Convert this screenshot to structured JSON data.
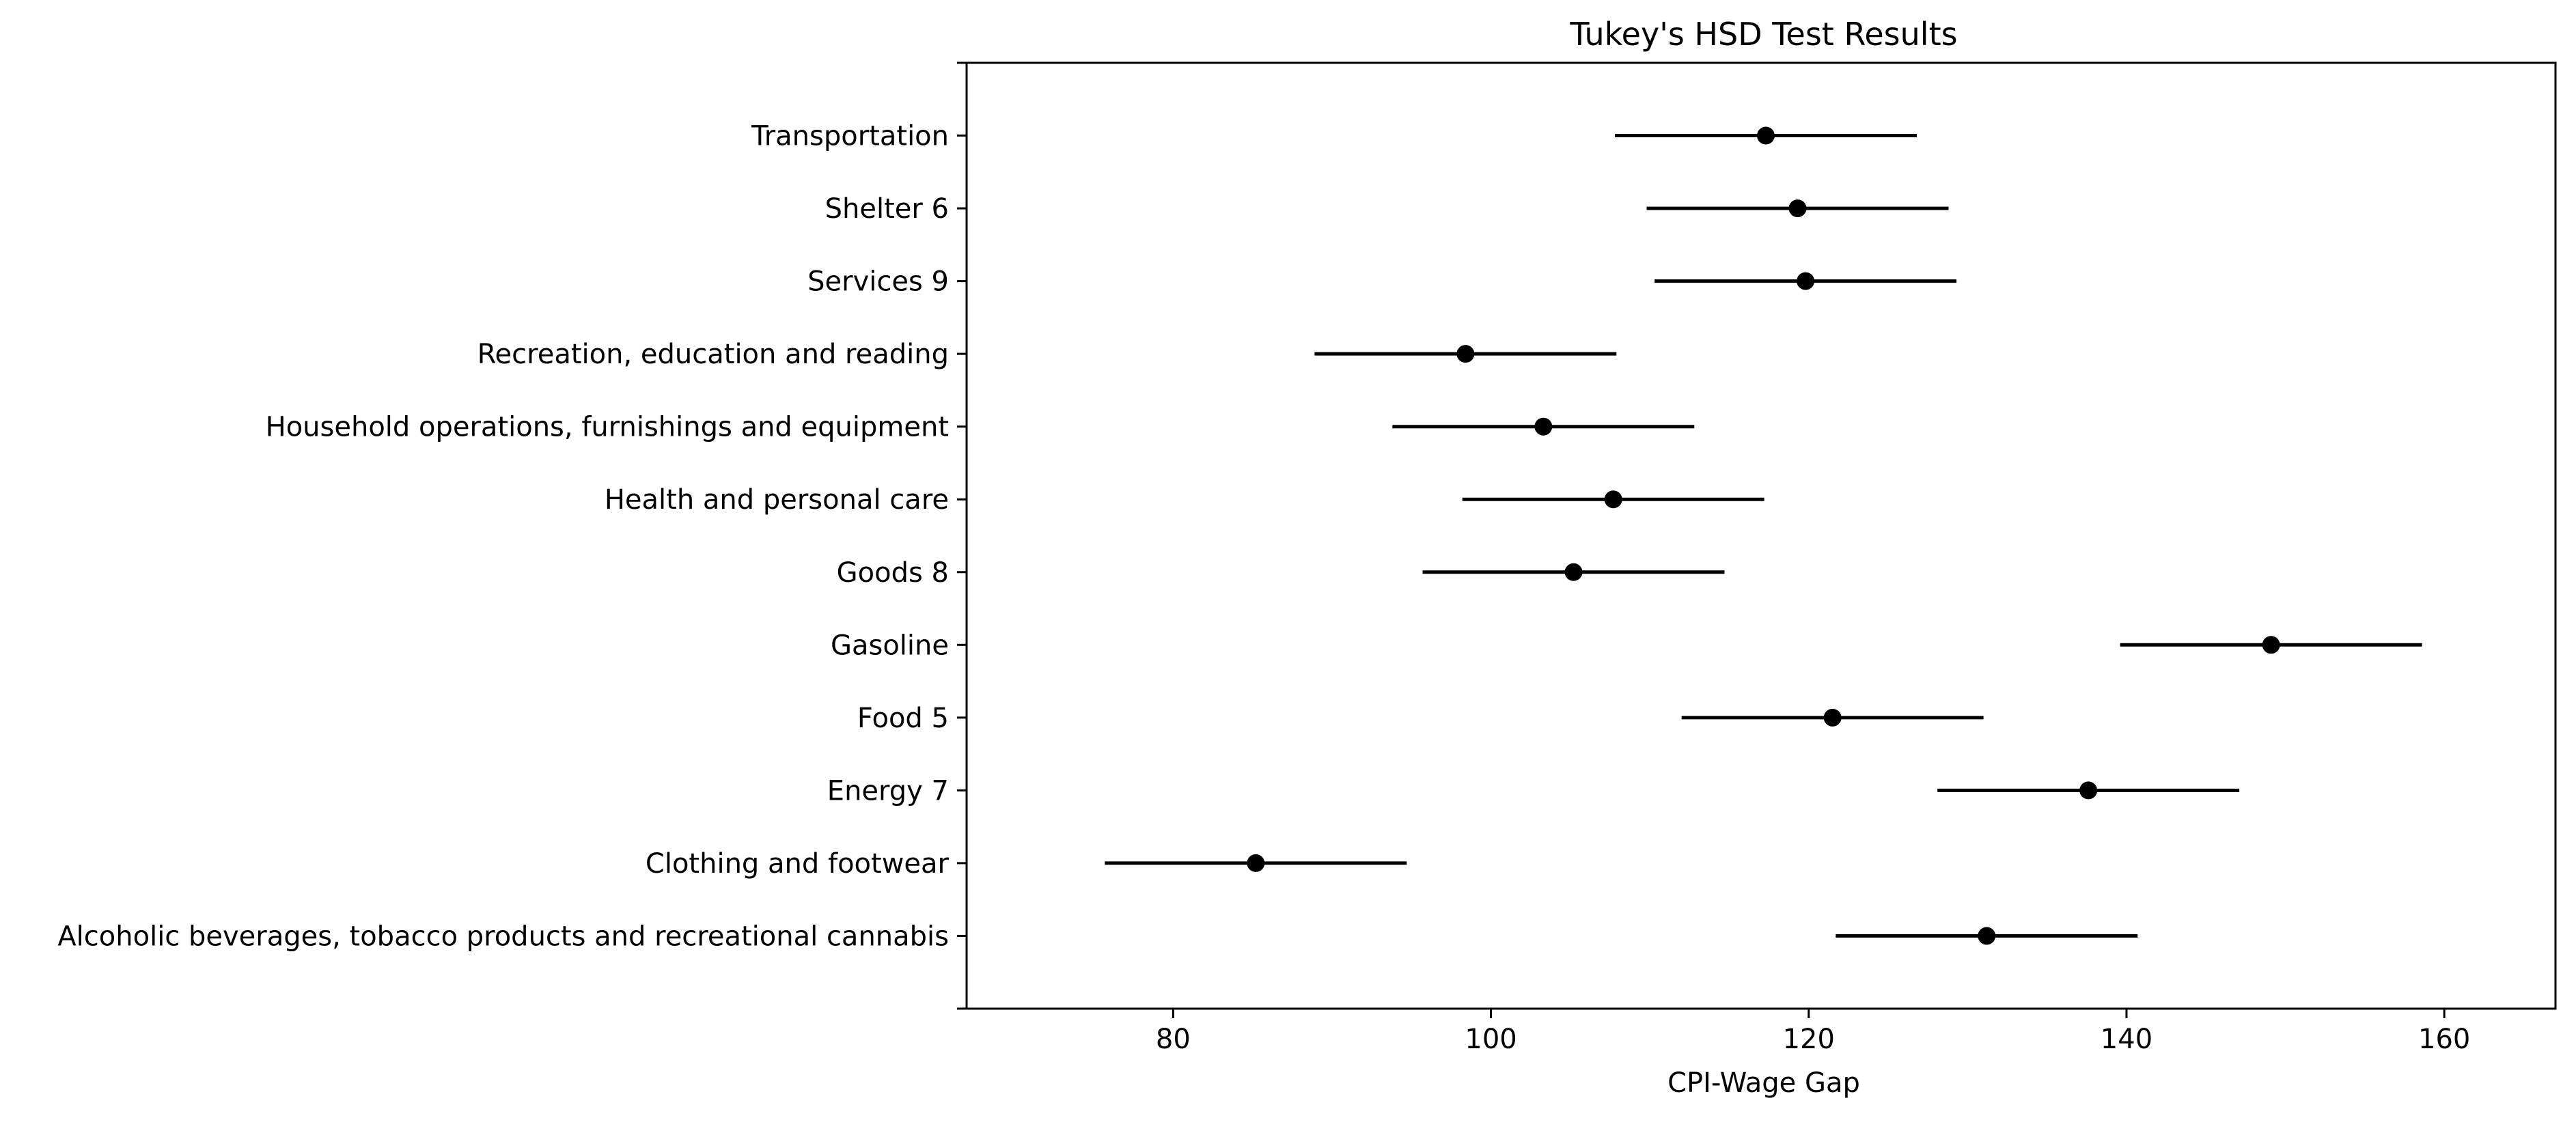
{
  "chart_data": {
    "type": "scatter",
    "subtype": "interval-plot",
    "title": "Tukey's HSD Test Results",
    "xlabel": "CPI-Wage Gap",
    "ylabel": "",
    "xlim": [
      67,
      167
    ],
    "xticks": [
      80,
      100,
      120,
      140,
      160
    ],
    "grid": false,
    "legend": null,
    "marker_color": "#000000",
    "categories": [
      "Alcoholic beverages, tobacco products and recreational cannabis",
      "Clothing and footwear",
      "Energy 7",
      "Food 5",
      "Gasoline",
      "Goods 8",
      "Health and personal care",
      "Household operations, furnishings and equipment",
      "Recreation, education and reading",
      "Services 9",
      "Shelter 6",
      "Transportation"
    ],
    "values": [
      131.2,
      85.2,
      137.6,
      121.5,
      149.1,
      105.2,
      107.7,
      103.3,
      98.4,
      119.8,
      119.3,
      117.3
    ],
    "lower": [
      121.7,
      75.7,
      128.1,
      112.0,
      139.6,
      95.7,
      98.2,
      93.8,
      88.9,
      110.3,
      109.8,
      107.8
    ],
    "upper": [
      140.7,
      94.7,
      147.1,
      131.0,
      158.6,
      114.7,
      117.2,
      112.8,
      107.9,
      129.3,
      128.8,
      126.8
    ]
  }
}
